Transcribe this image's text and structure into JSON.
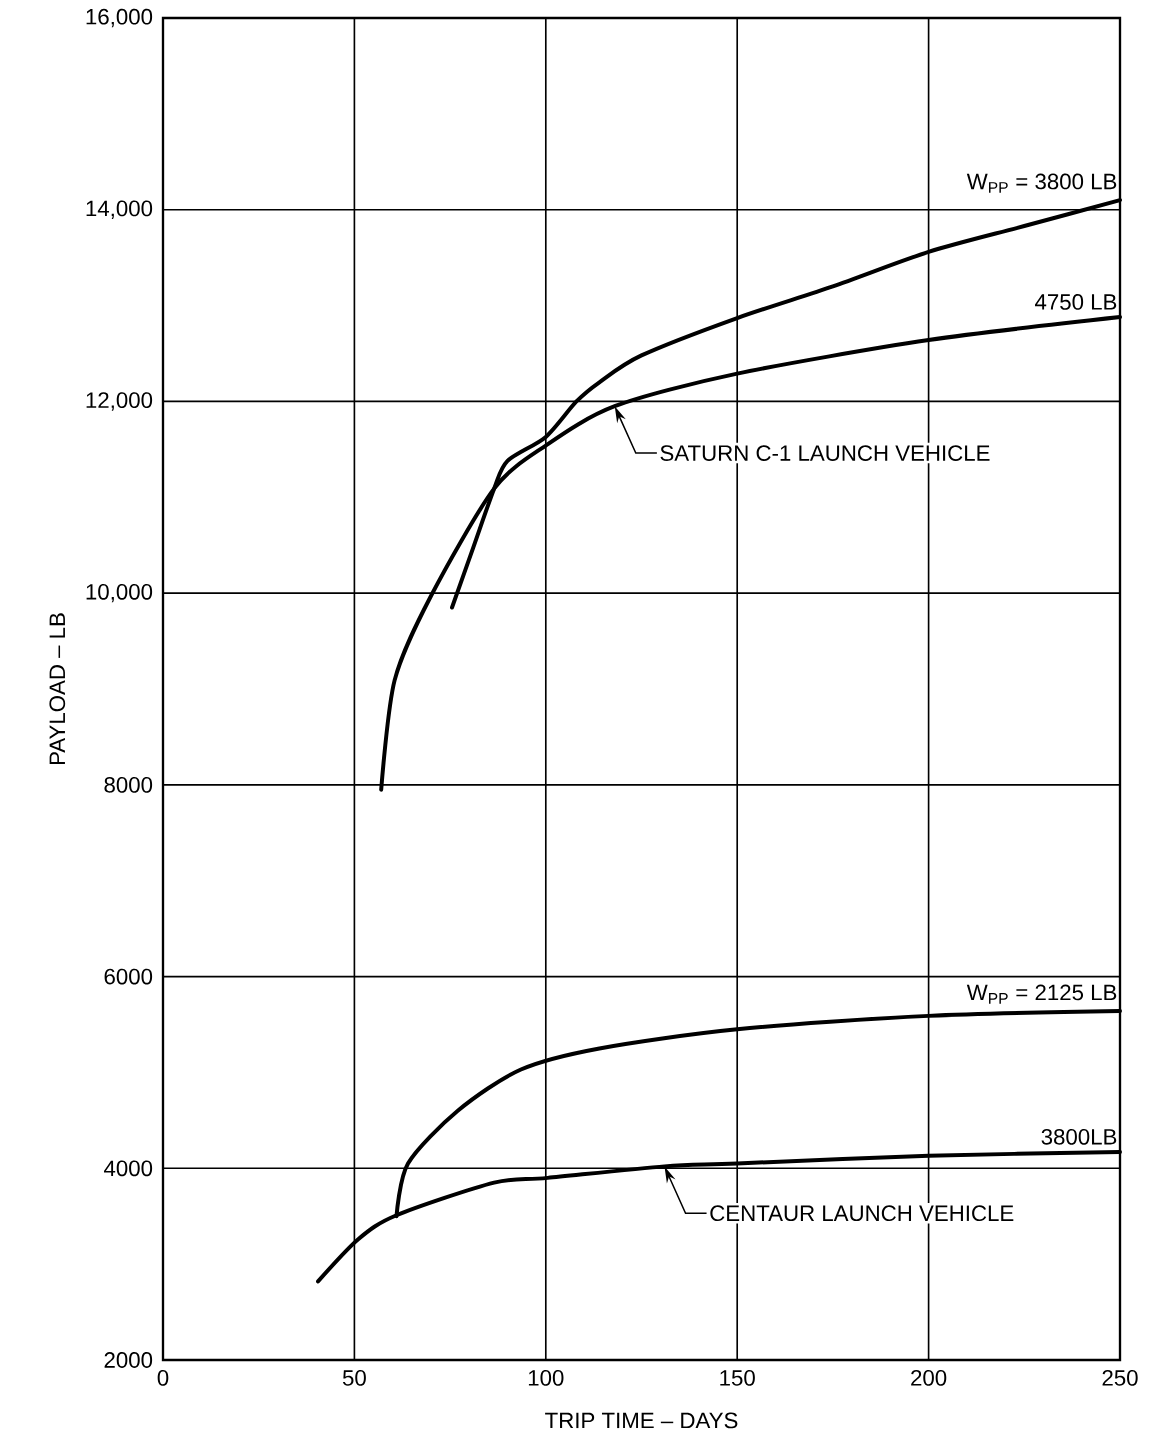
{
  "chart_data": {
    "type": "line",
    "xlabel": "TRIP TIME – DAYS",
    "ylabel": "PAYLOAD – LB",
    "series": [
      {
        "name": "W$_{PP}$ = 3800 LB",
        "color": "#000000",
        "x": [
          75.5,
          81,
          86.5,
          90,
          100,
          108,
          114,
          125,
          150,
          175,
          200,
          225,
          250
        ],
        "values": [
          9850,
          10470,
          11090,
          11380,
          11630,
          12000,
          12200,
          12480,
          12870,
          13200,
          13560,
          13830,
          14100
        ]
      },
      {
        "name": "4750 LB",
        "color": "#000000",
        "x": [
          57,
          60.5,
          70,
          86.5,
          100,
          118,
          150,
          200,
          250
        ],
        "values": [
          7950,
          9090,
          9970,
          11090,
          11540,
          11950,
          12290,
          12640,
          12880
        ]
      },
      {
        "name": "W$_{PP}$ = 2125 LB",
        "color": "#000000",
        "x": [
          61,
          64,
          77,
          93.5,
          114,
          150,
          200,
          250
        ],
        "values": [
          3500,
          4050,
          4600,
          5030,
          5250,
          5450,
          5590,
          5640
        ]
      },
      {
        "name": "3800LB",
        "color": "#000000",
        "x": [
          40.5,
          51,
          61,
          86.5,
          100.5,
          131,
          150,
          200,
          250
        ],
        "values": [
          2820,
          3260,
          3510,
          3850,
          3900,
          4020,
          4050,
          4130,
          4170
        ]
      }
    ],
    "annotations": [
      {
        "text": "SATURN C-1 LAUNCH VEHICLE",
        "x": 118,
        "y": 11950
      },
      {
        "text": "CENTAUR LAUNCH VEHICLE",
        "x": 131,
        "y": 4020
      }
    ],
    "xlim": [
      0,
      250
    ],
    "ylim": [
      2000,
      16000
    ],
    "xticks": [
      0,
      50,
      100,
      150,
      200,
      250
    ],
    "yticks": [
      2000,
      4000,
      6000,
      8000,
      {
        "value": 10000,
        "label": "10,000"
      },
      {
        "value": 12000,
        "label": "12,000"
      },
      {
        "value": 14000,
        "label": "14,000"
      },
      {
        "value": 16000,
        "label": "16,000"
      }
    ],
    "grid": true,
    "legend": false,
    "line_style": "solid",
    "marker": "none"
  }
}
